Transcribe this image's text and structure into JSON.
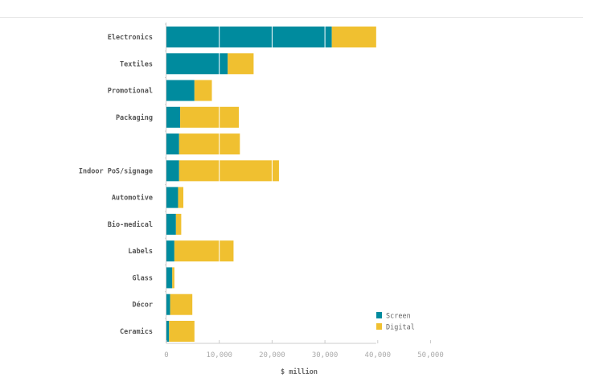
{
  "chart_data": {
    "type": "bar",
    "orientation": "horizontal",
    "stacked": true,
    "categories": [
      "Electronics",
      "Textiles",
      "Promotional",
      "Packaging",
      "",
      "Indoor PoS/signage",
      "Automotive",
      "Bio-medical",
      "Labels",
      "Glass",
      "Décor",
      "Ceramics"
    ],
    "series": [
      {
        "name": "Screen",
        "color": "#008b9e",
        "values": [
          31300,
          11600,
          5300,
          2600,
          2400,
          2400,
          2200,
          1800,
          1500,
          1100,
          700,
          500
        ]
      },
      {
        "name": "Digital",
        "color": "#f0c030",
        "values": [
          8400,
          4900,
          3300,
          11100,
          11500,
          18900,
          1000,
          1000,
          11200,
          400,
          4200,
          4800
        ]
      }
    ],
    "xlabel": "$ million",
    "xlim": [
      0,
      50000
    ],
    "xticks": [
      0,
      10000,
      20000,
      30000,
      40000,
      50000
    ],
    "xtick_labels": [
      "0",
      "10,000",
      "20,000",
      "30,000",
      "40,000",
      "50,000"
    ],
    "grid": "vertical white lines over bars",
    "legend": "bottom-right"
  }
}
